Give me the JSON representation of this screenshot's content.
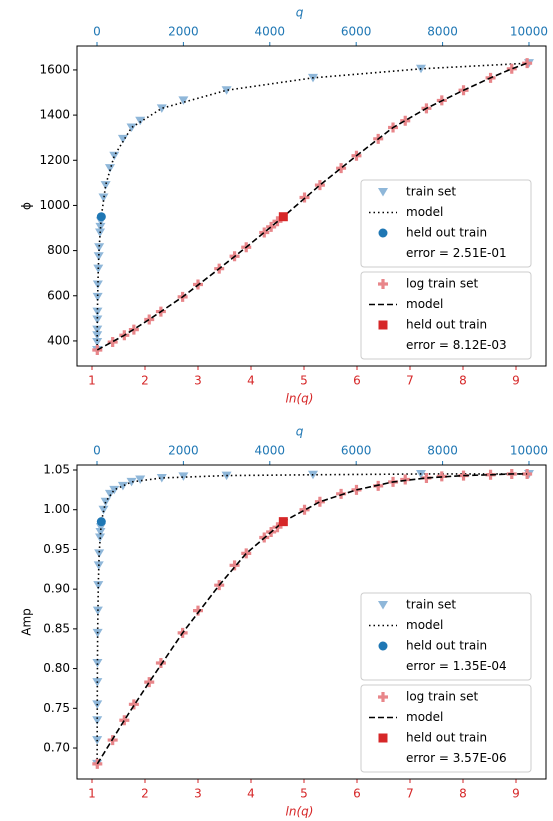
{
  "chart_data": [
    {
      "type": "scatter",
      "ylabel": "ϕ",
      "xlabel": "ln(q)",
      "x2label": "q",
      "xlim": [
        0.717,
        9.566
      ],
      "xticks": [
        1,
        2,
        3,
        4,
        5,
        6,
        7,
        8,
        9
      ],
      "x2lim": [
        -463,
        10394
      ],
      "x2ticks": [
        0,
        2000,
        4000,
        6000,
        8000,
        10000
      ],
      "ylim": [
        289,
        1706
      ],
      "yticks": [
        400,
        600,
        800,
        1000,
        1200,
        1400,
        1600
      ],
      "errors": [
        "error = 2.51E-01",
        "error = 8.12E-03"
      ],
      "series": [
        {
          "name": "train set",
          "color": "#8fb7d9",
          "marker": "triangle-down",
          "axis": "x2",
          "x": [
            3,
            4,
            5,
            6,
            8,
            10,
            15,
            20,
            30,
            40,
            50,
            70,
            80,
            90,
            150,
            200,
            300,
            400,
            600,
            800,
            1000,
            1500,
            2000,
            3000,
            5000,
            7500,
            10000
          ],
          "values": [
            360,
            395,
            425,
            450,
            495,
            530,
            595,
            650,
            720,
            775,
            815,
            880,
            905,
            930,
            1035,
            1090,
            1165,
            1220,
            1295,
            1345,
            1375,
            1430,
            1465,
            1510,
            1565,
            1605,
            1630
          ]
        },
        {
          "name": "model",
          "color": "#000000",
          "line": "dotted",
          "axis": "x2",
          "x": [
            3,
            5,
            8,
            15,
            30,
            50,
            100,
            200,
            400,
            800,
            1500,
            3000,
            5000,
            7500,
            10000
          ],
          "values": [
            360,
            425,
            495,
            595,
            720,
            815,
            950,
            1090,
            1220,
            1345,
            1430,
            1510,
            1565,
            1605,
            1630
          ]
        },
        {
          "name": "held out train",
          "color": "#1f77b4",
          "marker": "circle",
          "axis": "x2",
          "x": [
            100
          ],
          "values": [
            950
          ]
        },
        {
          "name": "log train set",
          "color": "#e8868a",
          "marker": "plus",
          "axis": "x",
          "x": [
            1.1,
            1.39,
            1.61,
            1.79,
            2.08,
            2.3,
            2.71,
            3.0,
            3.4,
            3.69,
            3.91,
            4.25,
            4.38,
            4.5,
            5.01,
            5.3,
            5.7,
            5.99,
            6.4,
            6.68,
            6.91,
            7.31,
            7.6,
            8.01,
            8.52,
            8.92,
            9.21
          ],
          "values": [
            360,
            395,
            425,
            450,
            495,
            530,
            595,
            650,
            720,
            775,
            815,
            880,
            905,
            930,
            1035,
            1090,
            1165,
            1220,
            1295,
            1345,
            1375,
            1430,
            1465,
            1510,
            1565,
            1605,
            1630
          ]
        },
        {
          "name": "model",
          "color": "#000000",
          "line": "dashed",
          "axis": "x",
          "x": [
            1.1,
            1.61,
            2.08,
            2.71,
            3.4,
            3.91,
            4.61,
            5.3,
            5.99,
            6.68,
            7.31,
            8.01,
            8.52,
            8.92,
            9.21
          ],
          "values": [
            360,
            425,
            495,
            595,
            720,
            815,
            950,
            1090,
            1220,
            1345,
            1430,
            1510,
            1565,
            1605,
            1630
          ]
        },
        {
          "name": "held out train",
          "color": "#d62728",
          "marker": "square",
          "axis": "x",
          "x": [
            4.61
          ],
          "values": [
            950
          ]
        }
      ]
    },
    {
      "type": "scatter",
      "ylabel": "Amp",
      "xlabel": "ln(q)",
      "x2label": "q",
      "xlim": [
        0.717,
        9.566
      ],
      "xticks": [
        1,
        2,
        3,
        4,
        5,
        6,
        7,
        8,
        9
      ],
      "x2lim": [
        -463,
        10394
      ],
      "x2ticks": [
        0,
        2000,
        4000,
        6000,
        8000,
        10000
      ],
      "ylim": [
        0.661,
        1.0563
      ],
      "yticks": [
        {
          "value": 0.7,
          "label": "0.70"
        },
        0.75,
        {
          "value": 0.8,
          "label": "0.80"
        },
        0.85,
        {
          "value": 0.9,
          "label": "0.90"
        },
        0.95,
        {
          "value": 1.0,
          "label": "1.00"
        },
        1.05
      ],
      "errors": [
        "error = 1.35E-04",
        "error = 3.57E-06"
      ],
      "series": [
        {
          "name": "train set",
          "color": "#8fb7d9",
          "marker": "triangle-down",
          "axis": "x2",
          "x": [
            3,
            4,
            5,
            6,
            8,
            10,
            15,
            20,
            30,
            40,
            50,
            70,
            80,
            90,
            150,
            200,
            300,
            400,
            600,
            800,
            1000,
            1500,
            2000,
            3000,
            5000,
            7500,
            10000
          ],
          "values": [
            0.68,
            0.71,
            0.735,
            0.755,
            0.783,
            0.807,
            0.845,
            0.873,
            0.905,
            0.93,
            0.945,
            0.965,
            0.972,
            0.978,
            1.0,
            1.01,
            1.02,
            1.025,
            1.03,
            1.035,
            1.038,
            1.04,
            1.042,
            1.043,
            1.044,
            1.045,
            1.045
          ]
        },
        {
          "name": "model",
          "color": "#000000",
          "line": "dotted",
          "axis": "x2",
          "x": [
            3,
            5,
            8,
            15,
            30,
            50,
            100,
            200,
            400,
            800,
            1500,
            3000,
            5000,
            7500,
            10000
          ],
          "values": [
            0.68,
            0.735,
            0.783,
            0.845,
            0.905,
            0.945,
            0.985,
            1.01,
            1.025,
            1.035,
            1.04,
            1.043,
            1.044,
            1.045,
            1.045
          ]
        },
        {
          "name": "held out train",
          "color": "#1f77b4",
          "marker": "circle",
          "axis": "x2",
          "x": [
            100
          ],
          "values": [
            0.985
          ]
        },
        {
          "name": "log train set",
          "color": "#e8868a",
          "marker": "plus",
          "axis": "x",
          "x": [
            1.1,
            1.39,
            1.61,
            1.79,
            2.08,
            2.3,
            2.71,
            3.0,
            3.4,
            3.69,
            3.91,
            4.25,
            4.38,
            4.5,
            5.01,
            5.3,
            5.7,
            5.99,
            6.4,
            6.68,
            6.91,
            7.31,
            7.6,
            8.01,
            8.52,
            8.92,
            9.21
          ],
          "values": [
            0.68,
            0.71,
            0.735,
            0.755,
            0.783,
            0.807,
            0.845,
            0.873,
            0.905,
            0.93,
            0.945,
            0.965,
            0.972,
            0.978,
            1.0,
            1.01,
            1.02,
            1.025,
            1.03,
            1.035,
            1.038,
            1.04,
            1.042,
            1.043,
            1.044,
            1.045,
            1.045
          ]
        },
        {
          "name": "model",
          "color": "#000000",
          "line": "dashed",
          "axis": "x",
          "x": [
            1.1,
            1.61,
            2.08,
            2.71,
            3.4,
            3.91,
            4.61,
            5.3,
            5.99,
            6.68,
            7.31,
            8.01,
            8.52,
            8.92,
            9.21
          ],
          "values": [
            0.68,
            0.735,
            0.783,
            0.845,
            0.905,
            0.945,
            0.985,
            1.01,
            1.025,
            1.035,
            1.04,
            1.043,
            1.044,
            1.045,
            1.045
          ]
        },
        {
          "name": "held out train",
          "color": "#d62728",
          "marker": "square",
          "axis": "x",
          "x": [
            4.61
          ],
          "values": [
            0.985
          ]
        }
      ]
    }
  ]
}
